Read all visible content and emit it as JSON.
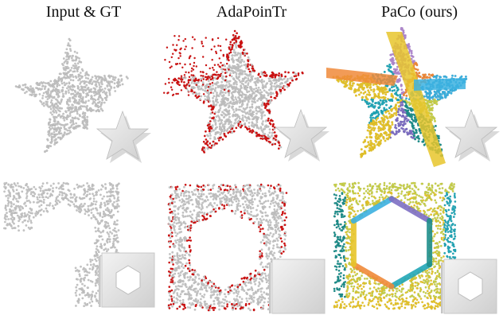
{
  "figure": {
    "columns": [
      {
        "title": "Input & GT"
      },
      {
        "title": "AdaPoinTr"
      },
      {
        "title": "PaCo (ours)"
      }
    ],
    "rows": [
      {
        "object": "star"
      },
      {
        "object": "hexagonal frame"
      }
    ],
    "colors": {
      "input_points": "#c4c4c4",
      "adapointr_error": "#d11212",
      "gt_mesh": "#e4e4e4",
      "paco_palette": [
        "#e7c52b",
        "#22a7b8",
        "#b28ad1",
        "#f08a3a",
        "#3cb1e0",
        "#c9d14a",
        "#1f8f8c",
        "#7e6fc4"
      ]
    }
  }
}
